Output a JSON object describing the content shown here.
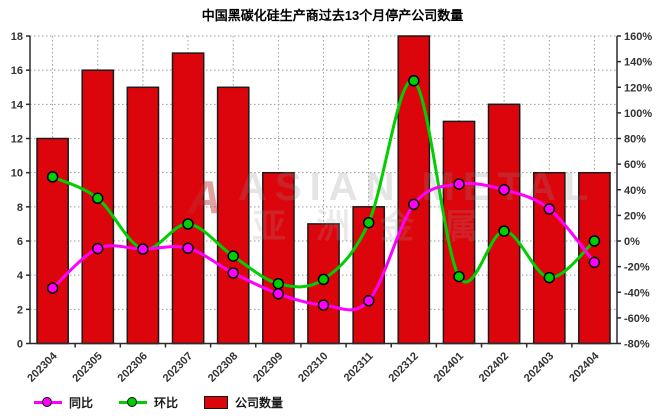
{
  "title": "中国黑碳化硅生产商过去13个月停产公司数量",
  "watermark": {
    "brand": "ASIAN METAL",
    "brand_cn": "亚洲金属",
    "logo_letter": "A"
  },
  "legend": {
    "yoy_label": "同比",
    "mom_label": "环比",
    "bars_label": "公司数量"
  },
  "colors": {
    "bar_fill": "#DD050C",
    "bar_stroke": "#1A1A1A",
    "yoy_line": "#FF00FF",
    "mom_line": "#00CE00",
    "marker_stroke": "#000000",
    "grid": "#9B9B9B",
    "axis_line": "#2B2B2B",
    "tick_text": "#333333"
  },
  "chart_data": {
    "type": "bar",
    "title": "中国黑碳化硅生产商过去13个月停产公司数量",
    "categories": [
      "202304",
      "202305",
      "202306",
      "202307",
      "202308",
      "202309",
      "202310",
      "202311",
      "202312",
      "202401",
      "202402",
      "202403",
      "202404"
    ],
    "series": [
      {
        "name": "公司数量",
        "type": "bar",
        "axis": "left",
        "values": [
          12,
          16,
          15,
          17,
          15,
          10,
          7,
          8,
          18,
          13,
          14,
          10,
          10
        ]
      },
      {
        "name": "同比",
        "type": "line",
        "axis": "right",
        "unit": "%",
        "values": [
          -36.8,
          -5.9,
          -6.3,
          -5.6,
          -25.0,
          -41.2,
          -50.0,
          -46.7,
          28.6,
          44.4,
          40.0,
          25.0,
          -16.7
        ]
      },
      {
        "name": "环比",
        "type": "line",
        "axis": "right",
        "unit": "%",
        "values": [
          50.0,
          33.3,
          -6.3,
          13.3,
          -11.8,
          -33.3,
          -30.0,
          14.3,
          125.0,
          -27.8,
          7.7,
          -28.6,
          0.0
        ]
      }
    ],
    "left_axis": {
      "min": 0,
      "max": 18,
      "step": 2,
      "suffix": ""
    },
    "right_axis": {
      "min": -80,
      "max": 160,
      "step": 20,
      "suffix": "%"
    },
    "grid": true,
    "legend_position": "bottom-left",
    "xlabel": "",
    "ylabel_left": "",
    "ylabel_right": ""
  }
}
